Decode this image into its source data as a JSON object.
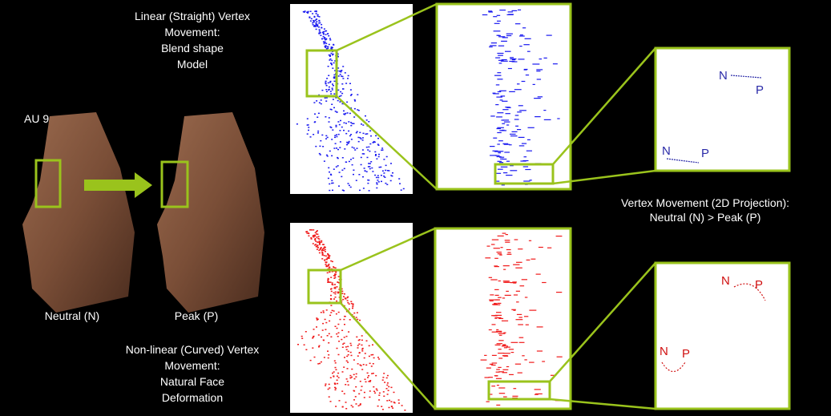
{
  "labels": {
    "au": "AU 9",
    "neutral": "Neutral (N)",
    "peak": "Peak (P)"
  },
  "top_caption": [
    "Linear (Straight) Vertex",
    "Movement:",
    "Blend shape",
    "Model"
  ],
  "bottom_caption": [
    "Non-linear (Curved) Vertex",
    "Movement:",
    "Natural Face",
    "Deformation"
  ],
  "projection_caption": [
    "Vertex Movement (2D Projection):",
    "Neutral (N) > Peak (P)"
  ],
  "top_zoom": {
    "n1": "N",
    "p1": "P",
    "n2": "N",
    "p2": "P"
  },
  "bottom_zoom": {
    "n1": "N",
    "p1": "P",
    "n2": "N",
    "p2": "P"
  }
}
